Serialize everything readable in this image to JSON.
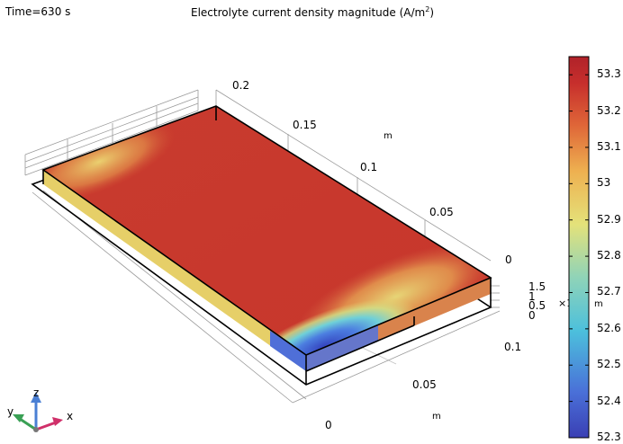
{
  "header": {
    "time_label": "Time=630 s",
    "title_prefix": "Electrolyte current density magnitude (A/m",
    "title_sup": "2",
    "title_suffix": ")"
  },
  "chart_data": {
    "type": "heatmap",
    "title": "Electrolyte current density magnitude (A/m²)",
    "time": "Time=630 s",
    "colormap": "Rainbow",
    "colorbar": {
      "min": 52.3,
      "max": 53.35,
      "ticks": [
        53.3,
        53.2,
        53.1,
        53,
        52.9,
        52.8,
        52.7,
        52.6,
        52.5,
        52.4,
        52.3
      ],
      "tick_labels": [
        "53.3",
        "53.2",
        "53.1",
        "53",
        "52.9",
        "52.8",
        "52.7",
        "52.6",
        "52.5",
        "52.4",
        "52.3"
      ]
    },
    "axes": {
      "y_ticks": [
        "0.2",
        "0.15",
        "0.1",
        "0.05",
        "0"
      ],
      "y_unit": "m",
      "x_ticks": [
        "0",
        "0.05",
        "0.1"
      ],
      "x_unit": "m",
      "z_ticks": [
        "1.5",
        "1",
        "0.5",
        "0"
      ],
      "z_unit": "m",
      "z_multiplier": "×10⁻³"
    },
    "field_regions": [
      {
        "region": "plate interior",
        "value": 53.25
      },
      {
        "region": "far corner",
        "value": 53.0
      },
      {
        "region": "near edge band",
        "value": 52.95
      },
      {
        "region": "near edge center",
        "value": 52.8
      },
      {
        "region": "near corner",
        "value": 52.35
      }
    ]
  },
  "triad": {
    "z": "z",
    "y": "y",
    "x": "x",
    "z_color": "#4a7fd4",
    "y_color": "#3aa055",
    "x_color": "#d0306a"
  }
}
